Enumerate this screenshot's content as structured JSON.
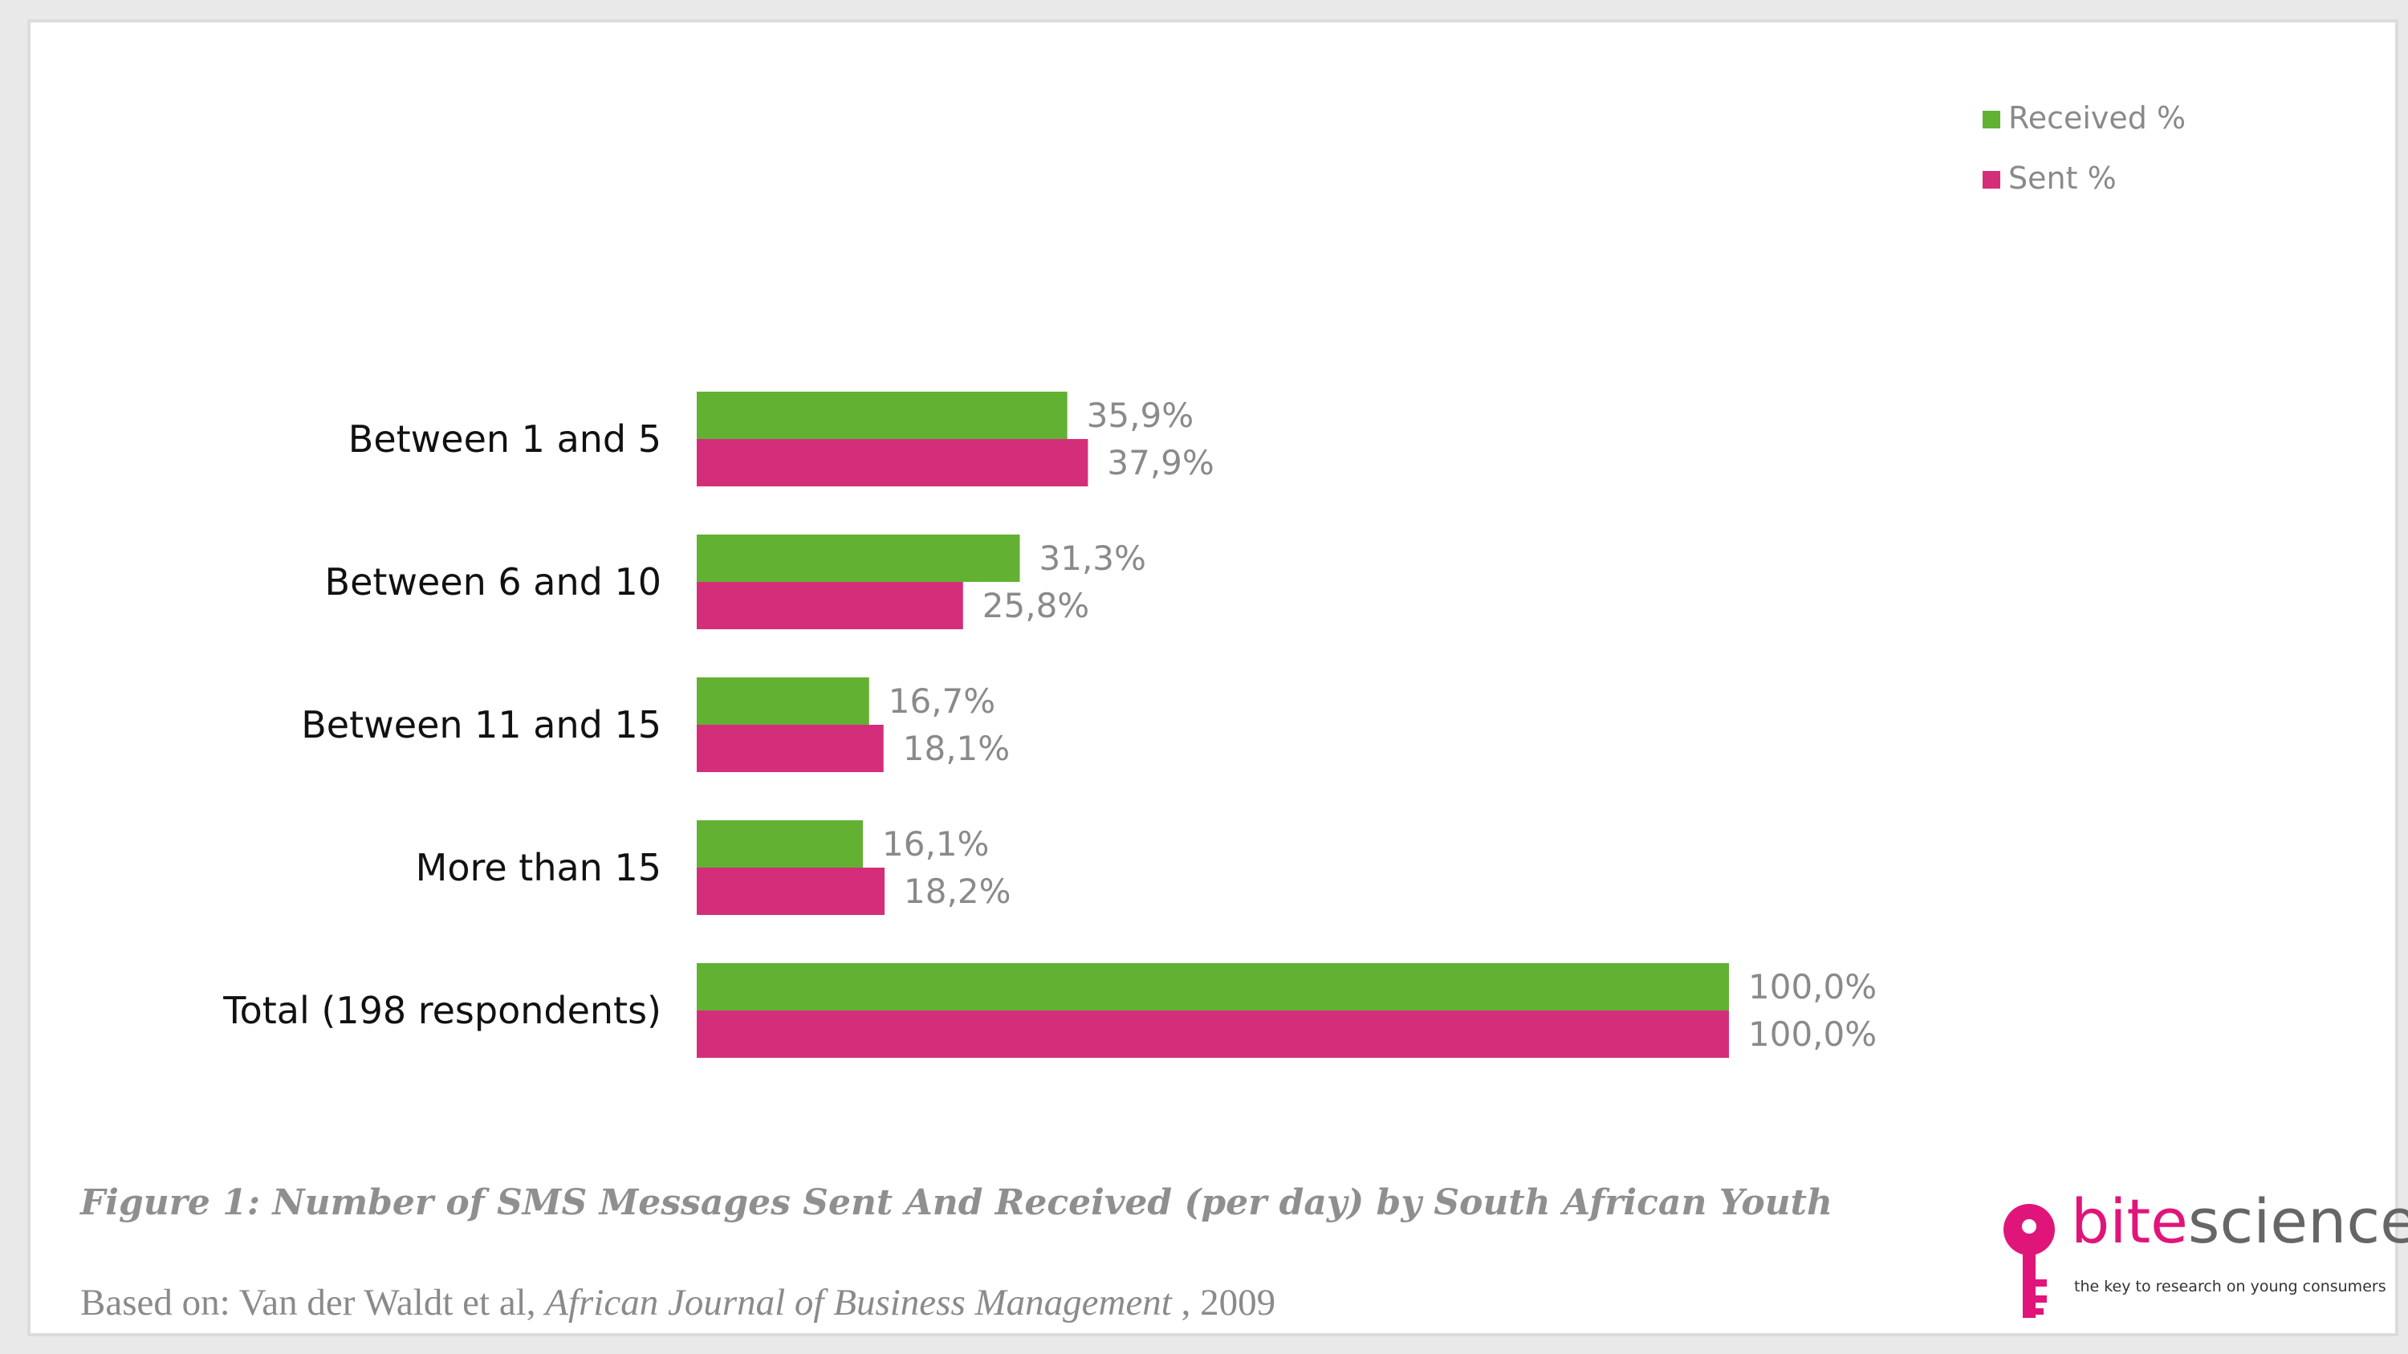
{
  "chart_data": {
    "type": "bar",
    "orientation": "horizontal",
    "categories": [
      "Between 1 and 5",
      "Between 6 and 10",
      "Between 11 and 15",
      "More than 15",
      "Total (198 respondents)"
    ],
    "series": [
      {
        "name": "Received %",
        "color": "#62b133",
        "values": [
          35.9,
          31.3,
          16.7,
          16.1,
          100.0
        ],
        "labels": [
          "35,9%",
          "31,3%",
          "16,7%",
          "16,1%",
          "100,0%"
        ]
      },
      {
        "name": "Sent %",
        "color": "#d42e7b",
        "values": [
          37.9,
          25.8,
          18.1,
          18.2,
          100.0
        ],
        "labels": [
          "37,9%",
          "25,8%",
          "18,1%",
          "18,2%",
          "100,0%"
        ]
      }
    ],
    "xlim": [
      0,
      100
    ],
    "legend_position": "top-right",
    "grid": false
  },
  "caption": "Figure 1: Number of SMS Messages Sent And Received (per day) by South African Youth",
  "source": {
    "prefix": "Based on: Van der Waldt et al, ",
    "journal": "African Journal of Business Management",
    "suffix": " , 2009"
  },
  "logo": {
    "word_part1": "bite",
    "word_part2": "science",
    "tagline": "the key to research on young consumers",
    "color": "#e0157a"
  }
}
